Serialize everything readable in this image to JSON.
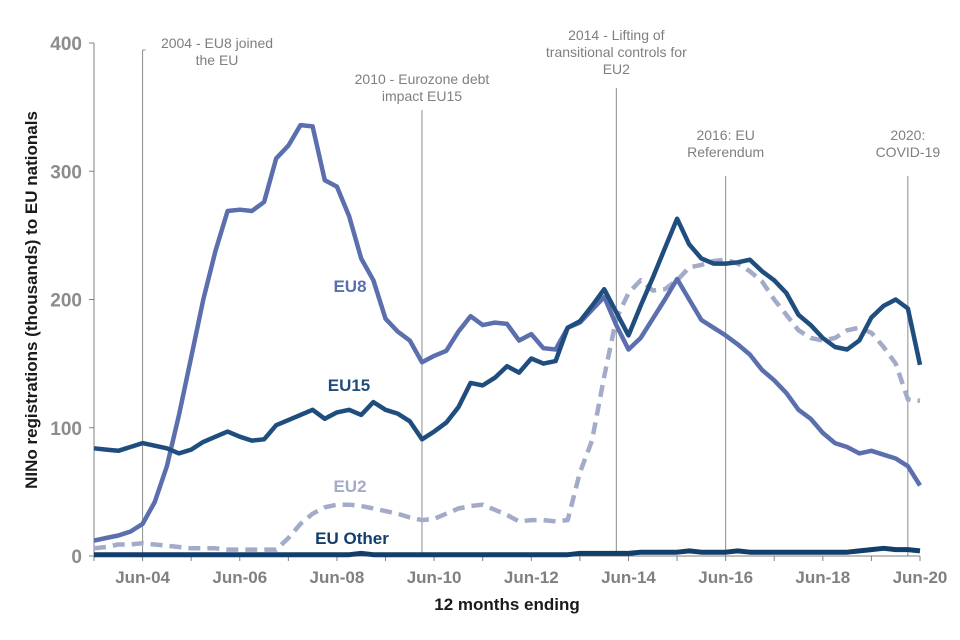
{
  "chart_data": {
    "type": "line",
    "title": "",
    "xlabel": "12 months ending",
    "ylabel": "NINo registrations (thousands) to EU nationals",
    "ylim": [
      0,
      400
    ],
    "yticks": [
      "0",
      "100",
      "200",
      "300",
      "400"
    ],
    "ytick_values": [
      0,
      100,
      200,
      300,
      400
    ],
    "xticks": [
      "Jun-04",
      "Jun-06",
      "Jun-08",
      "Jun-10",
      "Jun-12",
      "Jun-14",
      "Jun-16",
      "Jun-18",
      "Jun-20"
    ],
    "xtick_years": [
      2004,
      2006,
      2008,
      2010,
      2012,
      2014,
      2016,
      2018,
      2020
    ],
    "x_start": "Jun-03",
    "x_end": "Jun-20",
    "x_frequency": "quarterly",
    "grid": false,
    "legend": "inline-labels",
    "series": [
      {
        "name": "EU8",
        "color": "#5b6fae",
        "style": "solid",
        "values": [
          12,
          14,
          16,
          19,
          25,
          42,
          70,
          110,
          155,
          200,
          238,
          269,
          270,
          269,
          276,
          310,
          320,
          336,
          335,
          293,
          288,
          265,
          232,
          215,
          185,
          175,
          168,
          151,
          156,
          160,
          175,
          187,
          180,
          182,
          181,
          168,
          173,
          162,
          161,
          178,
          182,
          192,
          202,
          180,
          161,
          170,
          185,
          200,
          216,
          200,
          184,
          178,
          172,
          165,
          157,
          145,
          137,
          127,
          114,
          107,
          96,
          88,
          85,
          80,
          82,
          79,
          76,
          70,
          55
        ]
      },
      {
        "name": "EU15",
        "color": "#1f4e7e",
        "style": "solid",
        "values": [
          84,
          83,
          82,
          85,
          88,
          86,
          84,
          80,
          83,
          89,
          93,
          97,
          93,
          90,
          91,
          102,
          106,
          110,
          114,
          107,
          112,
          114,
          110,
          120,
          114,
          111,
          105,
          91,
          97,
          104,
          116,
          135,
          133,
          139,
          148,
          143,
          154,
          150,
          152,
          178,
          183,
          195,
          208,
          190,
          172,
          195,
          217,
          240,
          263,
          243,
          232,
          228,
          228,
          229,
          231,
          222,
          215,
          205,
          188,
          180,
          170,
          163,
          161,
          168,
          186,
          195,
          200,
          193,
          149
        ]
      },
      {
        "name": "EU2",
        "color": "#a3abc9",
        "style": "dashed",
        "values": [
          6,
          7,
          9,
          9,
          10,
          9,
          8,
          7,
          6,
          6,
          6,
          5,
          5,
          5,
          5,
          5,
          14,
          25,
          33,
          38,
          40,
          40,
          39,
          37,
          35,
          33,
          30,
          28,
          29,
          33,
          37,
          39,
          40,
          36,
          32,
          27,
          28,
          28,
          27,
          28,
          65,
          90,
          140,
          185,
          205,
          215,
          207,
          208,
          215,
          225,
          227,
          230,
          231,
          228,
          222,
          214,
          200,
          188,
          176,
          170,
          168,
          170,
          176,
          178,
          174,
          163,
          150,
          122,
          121
        ]
      },
      {
        "name": "EU Other",
        "color": "#123e6b",
        "style": "solid",
        "values": [
          1,
          1,
          1,
          1,
          1,
          1,
          1,
          1,
          1,
          1,
          1,
          1,
          1,
          1,
          1,
          1,
          1,
          1,
          1,
          1,
          1,
          1,
          2,
          1,
          1,
          1,
          1,
          1,
          1,
          1,
          1,
          1,
          1,
          1,
          1,
          1,
          1,
          1,
          1,
          1,
          2,
          2,
          2,
          2,
          2,
          3,
          3,
          3,
          3,
          4,
          3,
          3,
          3,
          4,
          3,
          3,
          3,
          3,
          3,
          3,
          3,
          3,
          3,
          4,
          5,
          6,
          5,
          5,
          4
        ]
      }
    ],
    "series_labels": [
      {
        "text": "EU8",
        "series": "EU8",
        "anchor_year": 2008.5,
        "anchor_value": 210
      },
      {
        "text": "EU15",
        "series": "EU15",
        "anchor_year": 2008.5,
        "anchor_value": 132
      },
      {
        "text": "EU2",
        "series": "EU2",
        "anchor_year": 2008.5,
        "anchor_value": 52
      },
      {
        "text": "EU Other",
        "series": "EU Other",
        "anchor_year": 2008.5,
        "anchor_value": 14
      }
    ],
    "annotations": [
      {
        "lines": [
          "2004 - EU8 joined",
          "the EU"
        ],
        "year": 2004.0,
        "label_year": 2005.2
      },
      {
        "lines": [
          "2010 - Eurozone debt",
          "impact EU15"
        ],
        "year": 2009.75,
        "label_year": 2009.75
      },
      {
        "lines": [
          "2014 - Lifting of",
          "transitional controls for",
          "EU2"
        ],
        "year": 2013.75,
        "label_year": 2013.75
      },
      {
        "lines": [
          "2016: EU",
          "Referendum"
        ],
        "year": 2016.0,
        "label_year": 2016.0
      },
      {
        "lines": [
          "2020:",
          "COVID-19"
        ],
        "year": 2019.75,
        "label_year": 2019.75
      }
    ],
    "colors": {
      "axis": "#808080",
      "annotation_line": "#8c8c8c",
      "annotation_text": "#7f7f7f"
    }
  }
}
